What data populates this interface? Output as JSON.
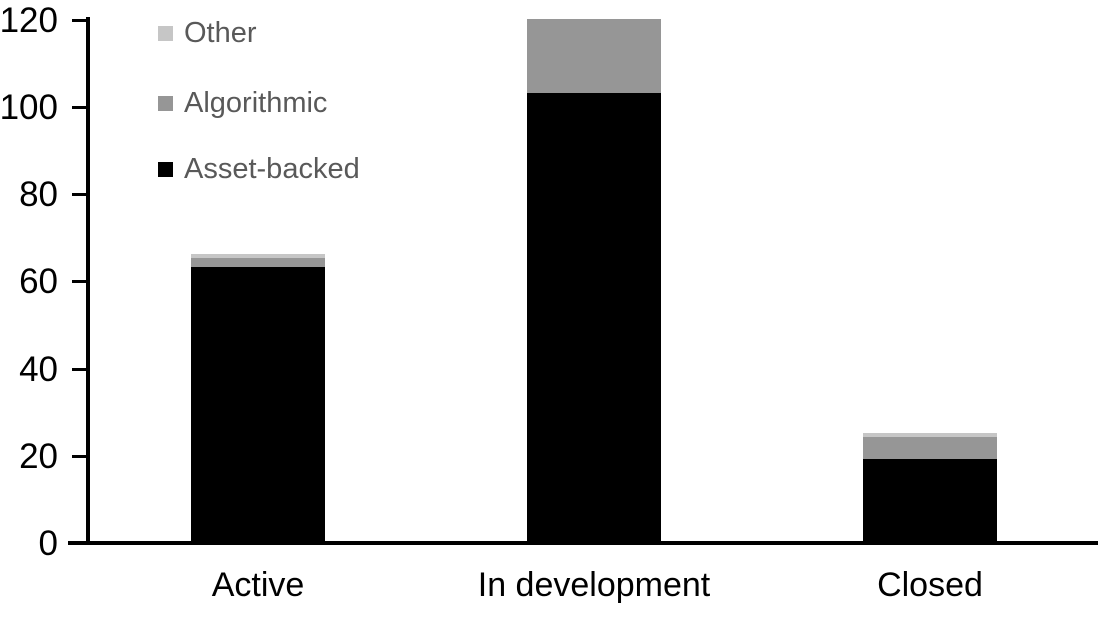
{
  "chart_data": {
    "type": "bar",
    "stacked": true,
    "title": "",
    "xlabel": "",
    "ylabel": "",
    "categories": [
      "Active",
      "In development",
      "Closed"
    ],
    "series": [
      {
        "name": "Asset-backed",
        "color": "#000000",
        "values": [
          63,
          103,
          19
        ]
      },
      {
        "name": "Algorithmic",
        "color": "#969696",
        "values": [
          2,
          17,
          5
        ]
      },
      {
        "name": "Other",
        "color": "#c6c6c6",
        "values": [
          1,
          0,
          1
        ]
      }
    ],
    "totals": [
      66,
      120,
      25
    ],
    "ylim": [
      0,
      120
    ],
    "yticks": [
      0,
      20,
      40,
      60,
      80,
      100,
      120
    ],
    "grid": false,
    "legend_position": "top-left",
    "legend": [
      {
        "label": "Other",
        "color": "#c6c6c6"
      },
      {
        "label": "Algorithmic",
        "color": "#969696"
      },
      {
        "label": "Asset-backed",
        "color": "#000000"
      }
    ]
  },
  "colors": {
    "background": "#ffffff",
    "axis": "#000000",
    "tick_label_text": "#000000",
    "category_label_text": "#000000",
    "legend_text": "#595959"
  }
}
